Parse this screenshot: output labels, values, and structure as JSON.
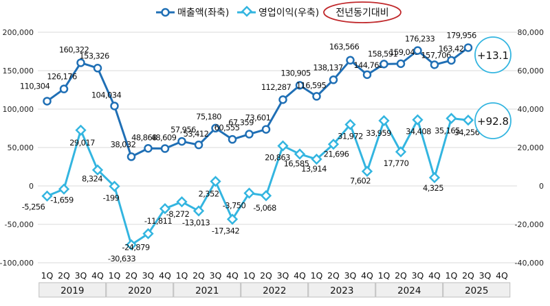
{
  "legend": {
    "revenue_label": "매출액(좌축)",
    "profit_label": "영업이익(우축)",
    "yoy_label": "전년동기대비"
  },
  "badges": {
    "revenue_yoy": "+13.1",
    "profit_yoy": "+92.8"
  },
  "colors": {
    "revenue": "#1f6fb5",
    "profit": "#33b5e0",
    "yoy_ring": "#c0282b",
    "badge_ring": "#33b5e0"
  },
  "chart_data": {
    "type": "line",
    "quarters": [
      "1Q",
      "2Q",
      "3Q",
      "4Q",
      "1Q",
      "2Q",
      "3Q",
      "4Q",
      "1Q",
      "2Q",
      "3Q",
      "4Q",
      "1Q",
      "2Q",
      "3Q",
      "4Q",
      "1Q",
      "2Q",
      "3Q",
      "4Q",
      "1Q",
      "2Q",
      "3Q",
      "4Q",
      "1Q",
      "2Q",
      "3Q",
      "4Q"
    ],
    "years": [
      "2019",
      "2020",
      "2021",
      "2022",
      "2023",
      "2024",
      "2025"
    ],
    "left_axis": {
      "min": -100000,
      "max": 200000,
      "ticks": [
        "200,000",
        "150,000",
        "100,000",
        "50,000",
        "0",
        "-50,000",
        "-100,000"
      ]
    },
    "right_axis": {
      "min": -40000,
      "max": 80000,
      "ticks": [
        "80,000",
        "60,000",
        "40,000",
        "20,000",
        "0",
        "-20,000",
        "-40,000"
      ]
    },
    "series": [
      {
        "name": "매출액(좌축)",
        "axis": "left",
        "values": [
          110304,
          126176,
          160322,
          153326,
          104034,
          38032,
          48868,
          48609,
          57956,
          53412,
          75180,
          60555,
          67359,
          73601,
          112287,
          130905,
          116595,
          138137,
          163566,
          144768,
          158591,
          159043,
          176233,
          157706,
          163424,
          179956
        ],
        "labels": [
          "110,304",
          "126,176",
          "160,322",
          "153,326",
          "104,034",
          "38,032",
          "48,868",
          "48,609",
          "57,956",
          "53,412",
          "75,180",
          "60,555",
          "67,359",
          "73,601",
          "112,287",
          "130,905",
          "116,595",
          "138,137",
          "163,566",
          "144,768",
          "158,591",
          "159,043",
          "176,233",
          "157,706",
          "163,424",
          "179,956"
        ]
      },
      {
        "name": "영업이익(우축)",
        "axis": "right",
        "values": [
          -5256,
          -1659,
          29017,
          8324,
          -199,
          -30633,
          -24879,
          -11811,
          -8272,
          -13013,
          2352,
          -17342,
          -3750,
          -5068,
          20863,
          16585,
          13914,
          21696,
          31972,
          7602,
          33959,
          17770,
          34408,
          4325,
          35165,
          34256
        ],
        "labels": [
          "-5,256",
          "-1,659",
          "29,017",
          "8,324",
          "-199",
          "-30,633",
          "-24,879",
          "-11,811",
          "-8,272",
          "-13,013",
          "2,352",
          "-17,342",
          "-3,750",
          "-5,068",
          "20,863",
          "16,585",
          "13,914",
          "21,696",
          "31,972",
          "7,602",
          "33,959",
          "17,770",
          "34,408",
          "4,325",
          "35,165",
          "34,256"
        ]
      }
    ]
  }
}
